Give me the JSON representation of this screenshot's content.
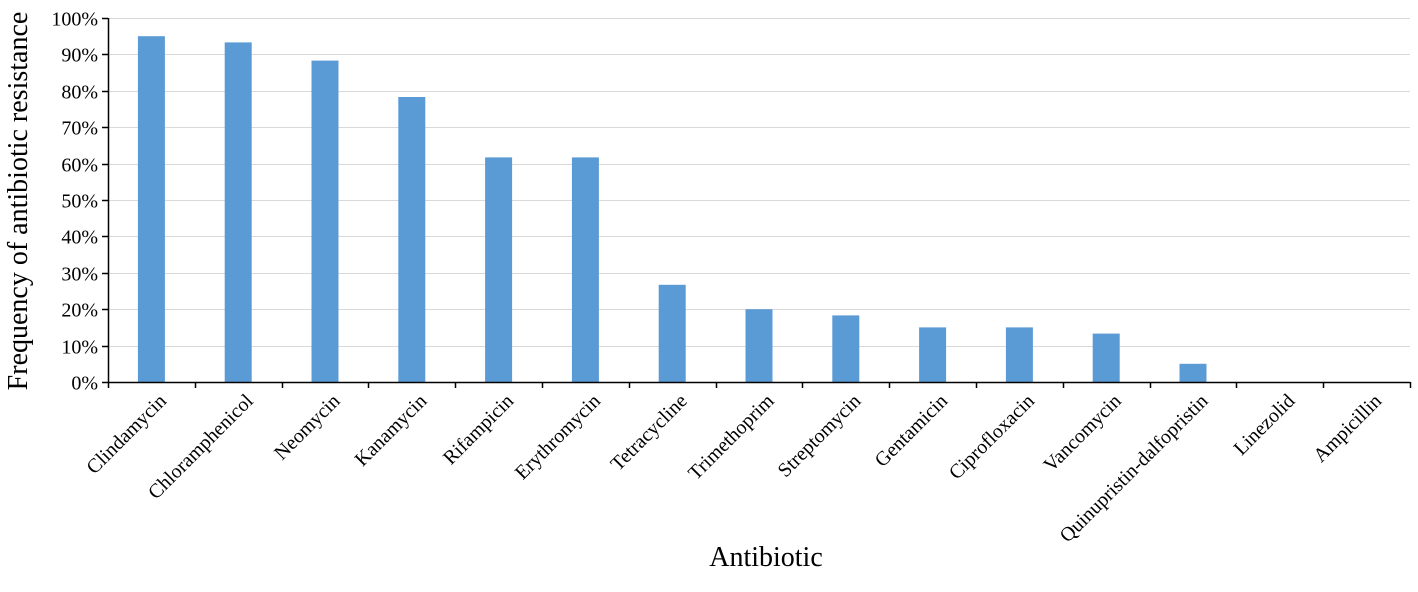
{
  "chart_data": {
    "type": "bar",
    "title": "",
    "xlabel": "Antibiotic",
    "ylabel": "Frequency of antibiotic resistance",
    "ylim": [
      0,
      100
    ],
    "ytick_step": 10,
    "ytick_format": "percent",
    "grid": "horizontal",
    "bar_color": "#5B9BD5",
    "categories": [
      "Clindamycin",
      "Chloramphenicol",
      "Neomycin",
      "Kanamycin",
      "Rifampicin",
      "Erythromycin",
      "Tetracycline",
      "Trimethoprim",
      "Streptomycin",
      "Gentamicin",
      "Ciprofloxacin",
      "Vancomycin",
      "Quinupristin-dalfopristin",
      "Linezolid",
      "Ampicillin"
    ],
    "values": [
      95,
      93.3,
      88.3,
      78.3,
      61.7,
      61.7,
      26.7,
      20,
      18.3,
      15,
      15,
      13.3,
      5,
      0,
      0
    ]
  }
}
